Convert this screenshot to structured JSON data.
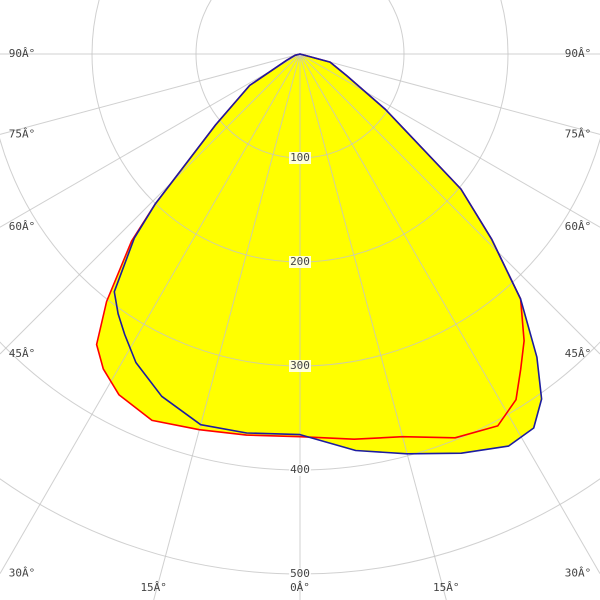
{
  "chart_data": {
    "type": "polar",
    "x": [
      -90,
      -75,
      -65,
      -58,
      -50,
      -44,
      -42,
      -38,
      -35,
      -32,
      -28,
      -22,
      -15,
      -8,
      0,
      8,
      15,
      22,
      28,
      32,
      35,
      38,
      42,
      46,
      50,
      57,
      65,
      75,
      90
    ],
    "series": [
      {
        "color": "#ff0000",
        "values": [
          0,
          5,
          14,
          57,
          106,
          200,
          242,
          302,
          341,
          357,
          371,
          380,
          374,
          370,
          368,
          374,
          381,
          398,
          405,
          392,
          370,
          350,
          317,
          256,
          202,
          98,
          50,
          30,
          0
        ]
      },
      {
        "color": "#1c1ca0",
        "values": [
          0,
          5,
          14,
          57,
          106,
          200,
          238,
          290,
          305,
          318,
          336,
          355,
          369,
          368,
          366,
          385,
          398,
          414,
          427,
          424,
          405,
          370,
          317,
          256,
          202,
          98,
          50,
          30,
          0
        ]
      }
    ],
    "fill_color": "#ffff00",
    "rlim": [
      0,
      500
    ],
    "rticks": [
      100,
      200,
      300,
      400,
      500
    ],
    "angle_ticks": [
      {
        "value": -90,
        "label": "90Â°"
      },
      {
        "value": -75,
        "label": "75Â°"
      },
      {
        "value": -60,
        "label": "60Â°"
      },
      {
        "value": -45,
        "label": "45Â°"
      },
      {
        "value": -30,
        "label": "30Â°"
      },
      {
        "value": -15,
        "label": "15Â°"
      },
      {
        "value": 0,
        "label": "0Â°"
      },
      {
        "value": 15,
        "label": "15Â°"
      },
      {
        "value": 30,
        "label": "30Â°"
      },
      {
        "value": 45,
        "label": "45Â°"
      },
      {
        "value": 60,
        "label": "60Â°"
      },
      {
        "value": 75,
        "label": "75Â°"
      },
      {
        "value": 90,
        "label": "90Â°"
      }
    ],
    "grid": true
  }
}
